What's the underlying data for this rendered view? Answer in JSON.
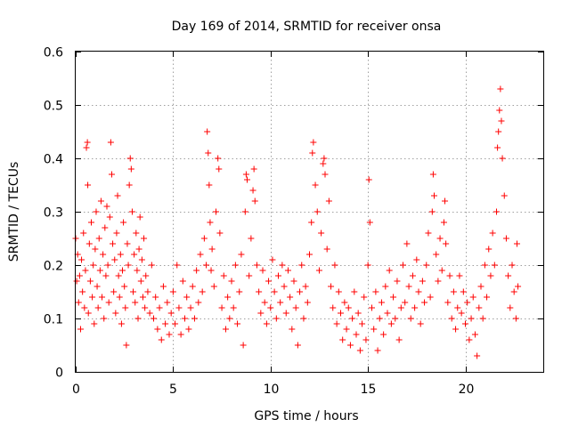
{
  "chart_data": {
    "type": "scatter",
    "title": "Day 169 of 2014, SRMTID for receiver onsa",
    "xlabel": "GPS time / hours",
    "ylabel": "SRMTID / TECUs",
    "xlim": [
      0,
      24
    ],
    "ylim": [
      0,
      0.6
    ],
    "xticks": [
      0,
      5,
      10,
      15,
      20
    ],
    "xtick_labels": [
      "0",
      "5",
      "10",
      "15",
      "20"
    ],
    "yticks": [
      0,
      0.1,
      0.2,
      0.3,
      0.4,
      0.5,
      0.6
    ],
    "ytick_labels": [
      "0",
      "0.1",
      "0.2",
      "0.3",
      "0.4",
      "0.5",
      "0.6"
    ],
    "grid": true,
    "marker": "plus",
    "point_color": "#ff0000",
    "series": [
      {
        "name": "SRMTID",
        "points": [
          [
            0.0,
            0.25
          ],
          [
            0.05,
            0.17
          ],
          [
            0.1,
            0.22
          ],
          [
            0.15,
            0.13
          ],
          [
            0.2,
            0.18
          ],
          [
            0.25,
            0.08
          ],
          [
            0.3,
            0.21
          ],
          [
            0.35,
            0.15
          ],
          [
            0.4,
            0.26
          ],
          [
            0.45,
            0.12
          ],
          [
            0.5,
            0.19
          ],
          [
            0.55,
            0.42
          ],
          [
            0.6,
            0.43
          ],
          [
            0.62,
            0.35
          ],
          [
            0.65,
            0.11
          ],
          [
            0.7,
            0.24
          ],
          [
            0.75,
            0.17
          ],
          [
            0.8,
            0.28
          ],
          [
            0.85,
            0.14
          ],
          [
            0.9,
            0.2
          ],
          [
            0.95,
            0.09
          ],
          [
            1.0,
            0.23
          ],
          [
            1.05,
            0.3
          ],
          [
            1.1,
            0.16
          ],
          [
            1.15,
            0.12
          ],
          [
            1.2,
            0.25
          ],
          [
            1.25,
            0.19
          ],
          [
            1.3,
            0.32
          ],
          [
            1.35,
            0.14
          ],
          [
            1.4,
            0.22
          ],
          [
            1.45,
            0.1
          ],
          [
            1.5,
            0.27
          ],
          [
            1.55,
            0.18
          ],
          [
            1.6,
            0.31
          ],
          [
            1.65,
            0.2
          ],
          [
            1.7,
            0.13
          ],
          [
            1.75,
            0.29
          ],
          [
            1.8,
            0.43
          ],
          [
            1.85,
            0.37
          ],
          [
            1.9,
            0.24
          ],
          [
            1.95,
            0.15
          ],
          [
            2.0,
            0.21
          ],
          [
            2.05,
            0.11
          ],
          [
            2.1,
            0.26
          ],
          [
            2.15,
            0.33
          ],
          [
            2.2,
            0.18
          ],
          [
            2.25,
            0.14
          ],
          [
            2.3,
            0.22
          ],
          [
            2.35,
            0.09
          ],
          [
            2.4,
            0.19
          ],
          [
            2.45,
            0.28
          ],
          [
            2.5,
            0.16
          ],
          [
            2.55,
            0.12
          ],
          [
            2.6,
            0.05
          ],
          [
            2.65,
            0.24
          ],
          [
            2.7,
            0.2
          ],
          [
            2.75,
            0.35
          ],
          [
            2.8,
            0.4
          ],
          [
            2.85,
            0.38
          ],
          [
            2.9,
            0.3
          ],
          [
            2.95,
            0.15
          ],
          [
            3.0,
            0.22
          ],
          [
            3.05,
            0.13
          ],
          [
            3.1,
            0.26
          ],
          [
            3.15,
            0.19
          ],
          [
            3.2,
            0.1
          ],
          [
            3.25,
            0.23
          ],
          [
            3.3,
            0.29
          ],
          [
            3.35,
            0.17
          ],
          [
            3.4,
            0.21
          ],
          [
            3.45,
            0.14
          ],
          [
            3.5,
            0.25
          ],
          [
            3.55,
            0.12
          ],
          [
            3.6,
            0.18
          ],
          [
            3.7,
            0.15
          ],
          [
            3.8,
            0.11
          ],
          [
            3.9,
            0.2
          ],
          [
            4.0,
            0.1
          ],
          [
            4.1,
            0.14
          ],
          [
            4.2,
            0.08
          ],
          [
            4.3,
            0.12
          ],
          [
            4.4,
            0.06
          ],
          [
            4.5,
            0.16
          ],
          [
            4.6,
            0.09
          ],
          [
            4.7,
            0.13
          ],
          [
            4.8,
            0.07
          ],
          [
            4.9,
            0.11
          ],
          [
            5.0,
            0.15
          ],
          [
            5.1,
            0.09
          ],
          [
            5.2,
            0.2
          ],
          [
            5.3,
            0.12
          ],
          [
            5.4,
            0.07
          ],
          [
            5.5,
            0.17
          ],
          [
            5.6,
            0.1
          ],
          [
            5.7,
            0.14
          ],
          [
            5.8,
            0.08
          ],
          [
            5.9,
            0.12
          ],
          [
            6.0,
            0.16
          ],
          [
            6.1,
            0.1
          ],
          [
            6.2,
            0.19
          ],
          [
            6.3,
            0.13
          ],
          [
            6.4,
            0.22
          ],
          [
            6.5,
            0.15
          ],
          [
            6.6,
            0.25
          ],
          [
            6.7,
            0.2
          ],
          [
            6.75,
            0.45
          ],
          [
            6.8,
            0.41
          ],
          [
            6.85,
            0.35
          ],
          [
            6.9,
            0.28
          ],
          [
            6.95,
            0.19
          ],
          [
            7.0,
            0.23
          ],
          [
            7.1,
            0.16
          ],
          [
            7.2,
            0.3
          ],
          [
            7.3,
            0.4
          ],
          [
            7.35,
            0.38
          ],
          [
            7.4,
            0.26
          ],
          [
            7.5,
            0.12
          ],
          [
            7.6,
            0.18
          ],
          [
            7.7,
            0.08
          ],
          [
            7.8,
            0.14
          ],
          [
            7.9,
            0.1
          ],
          [
            8.0,
            0.17
          ],
          [
            8.1,
            0.12
          ],
          [
            8.2,
            0.2
          ],
          [
            8.3,
            0.09
          ],
          [
            8.4,
            0.15
          ],
          [
            8.5,
            0.22
          ],
          [
            8.6,
            0.05
          ],
          [
            8.7,
            0.3
          ],
          [
            8.75,
            0.37
          ],
          [
            8.8,
            0.36
          ],
          [
            8.9,
            0.18
          ],
          [
            9.0,
            0.25
          ],
          [
            9.1,
            0.34
          ],
          [
            9.15,
            0.38
          ],
          [
            9.2,
            0.32
          ],
          [
            9.3,
            0.2
          ],
          [
            9.4,
            0.15
          ],
          [
            9.5,
            0.11
          ],
          [
            9.6,
            0.19
          ],
          [
            9.7,
            0.13
          ],
          [
            9.8,
            0.09
          ],
          [
            9.9,
            0.17
          ],
          [
            10.0,
            0.12
          ],
          [
            10.1,
            0.21
          ],
          [
            10.2,
            0.15
          ],
          [
            10.3,
            0.1
          ],
          [
            10.4,
            0.18
          ],
          [
            10.5,
            0.13
          ],
          [
            10.6,
            0.2
          ],
          [
            10.7,
            0.16
          ],
          [
            10.8,
            0.11
          ],
          [
            10.9,
            0.19
          ],
          [
            11.0,
            0.14
          ],
          [
            11.1,
            0.08
          ],
          [
            11.2,
            0.17
          ],
          [
            11.3,
            0.12
          ],
          [
            11.4,
            0.05
          ],
          [
            11.5,
            0.15
          ],
          [
            11.6,
            0.2
          ],
          [
            11.7,
            0.1
          ],
          [
            11.8,
            0.16
          ],
          [
            11.9,
            0.13
          ],
          [
            12.0,
            0.22
          ],
          [
            12.1,
            0.28
          ],
          [
            12.15,
            0.41
          ],
          [
            12.2,
            0.43
          ],
          [
            12.3,
            0.35
          ],
          [
            12.4,
            0.3
          ],
          [
            12.5,
            0.19
          ],
          [
            12.6,
            0.26
          ],
          [
            12.7,
            0.39
          ],
          [
            12.75,
            0.4
          ],
          [
            12.8,
            0.37
          ],
          [
            12.9,
            0.23
          ],
          [
            13.0,
            0.32
          ],
          [
            13.1,
            0.16
          ],
          [
            13.2,
            0.12
          ],
          [
            13.3,
            0.2
          ],
          [
            13.4,
            0.09
          ],
          [
            13.5,
            0.15
          ],
          [
            13.6,
            0.11
          ],
          [
            13.7,
            0.06
          ],
          [
            13.8,
            0.13
          ],
          [
            13.9,
            0.08
          ],
          [
            14.0,
            0.12
          ],
          [
            14.1,
            0.05
          ],
          [
            14.2,
            0.1
          ],
          [
            14.3,
            0.15
          ],
          [
            14.4,
            0.07
          ],
          [
            14.5,
            0.11
          ],
          [
            14.6,
            0.04
          ],
          [
            14.7,
            0.09
          ],
          [
            14.8,
            0.14
          ],
          [
            14.9,
            0.06
          ],
          [
            15.0,
            0.2
          ],
          [
            15.05,
            0.36
          ],
          [
            15.1,
            0.28
          ],
          [
            15.2,
            0.12
          ],
          [
            15.3,
            0.08
          ],
          [
            15.4,
            0.15
          ],
          [
            15.5,
            0.04
          ],
          [
            15.6,
            0.1
          ],
          [
            15.7,
            0.13
          ],
          [
            15.8,
            0.07
          ],
          [
            15.9,
            0.16
          ],
          [
            16.0,
            0.11
          ],
          [
            16.1,
            0.19
          ],
          [
            16.2,
            0.09
          ],
          [
            16.3,
            0.14
          ],
          [
            16.4,
            0.1
          ],
          [
            16.5,
            0.17
          ],
          [
            16.6,
            0.06
          ],
          [
            16.7,
            0.12
          ],
          [
            16.8,
            0.2
          ],
          [
            16.9,
            0.13
          ],
          [
            17.0,
            0.24
          ],
          [
            17.1,
            0.16
          ],
          [
            17.2,
            0.1
          ],
          [
            17.3,
            0.18
          ],
          [
            17.4,
            0.12
          ],
          [
            17.5,
            0.21
          ],
          [
            17.6,
            0.15
          ],
          [
            17.7,
            0.09
          ],
          [
            17.8,
            0.17
          ],
          [
            17.9,
            0.13
          ],
          [
            18.0,
            0.2
          ],
          [
            18.1,
            0.26
          ],
          [
            18.2,
            0.14
          ],
          [
            18.3,
            0.3
          ],
          [
            18.35,
            0.37
          ],
          [
            18.4,
            0.33
          ],
          [
            18.5,
            0.22
          ],
          [
            18.6,
            0.17
          ],
          [
            18.7,
            0.25
          ],
          [
            18.8,
            0.19
          ],
          [
            18.9,
            0.28
          ],
          [
            18.95,
            0.32
          ],
          [
            19.0,
            0.24
          ],
          [
            19.1,
            0.13
          ],
          [
            19.2,
            0.18
          ],
          [
            19.3,
            0.1
          ],
          [
            19.4,
            0.15
          ],
          [
            19.5,
            0.08
          ],
          [
            19.6,
            0.12
          ],
          [
            19.7,
            0.18
          ],
          [
            19.8,
            0.11
          ],
          [
            19.9,
            0.15
          ],
          [
            20.0,
            0.09
          ],
          [
            20.1,
            0.13
          ],
          [
            20.2,
            0.06
          ],
          [
            20.3,
            0.1
          ],
          [
            20.4,
            0.14
          ],
          [
            20.5,
            0.07
          ],
          [
            20.6,
            0.03
          ],
          [
            20.7,
            0.12
          ],
          [
            20.8,
            0.16
          ],
          [
            20.9,
            0.1
          ],
          [
            21.0,
            0.2
          ],
          [
            21.1,
            0.14
          ],
          [
            21.2,
            0.23
          ],
          [
            21.3,
            0.18
          ],
          [
            21.4,
            0.26
          ],
          [
            21.5,
            0.2
          ],
          [
            21.6,
            0.3
          ],
          [
            21.65,
            0.42
          ],
          [
            21.7,
            0.45
          ],
          [
            21.75,
            0.49
          ],
          [
            21.8,
            0.53
          ],
          [
            21.85,
            0.47
          ],
          [
            21.9,
            0.4
          ],
          [
            22.0,
            0.33
          ],
          [
            22.1,
            0.25
          ],
          [
            22.2,
            0.18
          ],
          [
            22.3,
            0.12
          ],
          [
            22.4,
            0.2
          ],
          [
            22.5,
            0.15
          ],
          [
            22.6,
            0.1
          ],
          [
            22.65,
            0.24
          ],
          [
            22.7,
            0.16
          ]
        ]
      }
    ]
  }
}
